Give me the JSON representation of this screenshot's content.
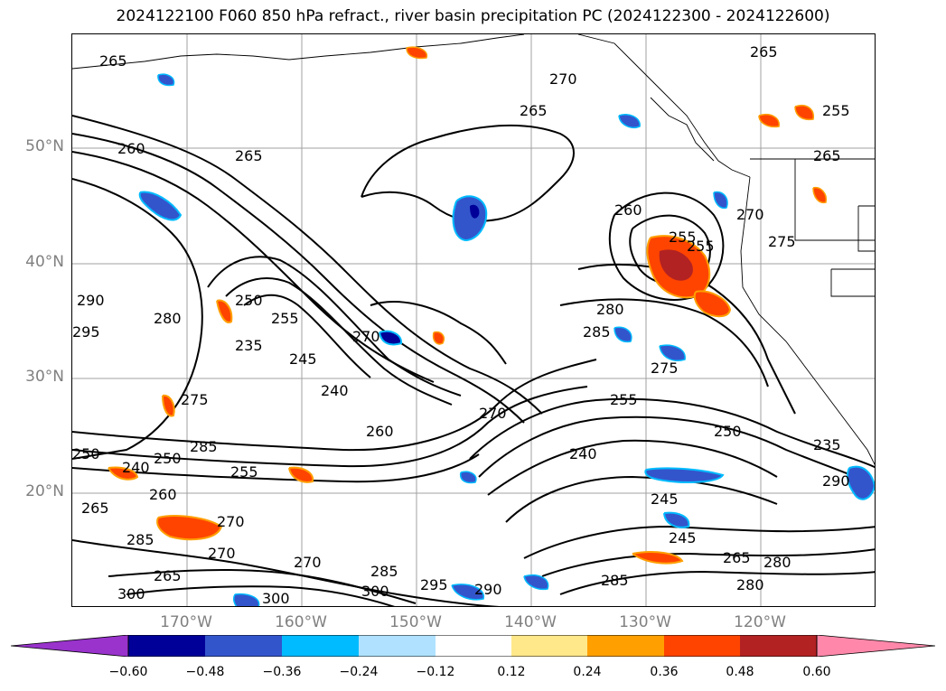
{
  "title": "2024122100 F060 850 hPa refract., river basin precipitation PC (2024122300 - 2024122600)",
  "map": {
    "lat_ticks": [
      "50°N",
      "40°N",
      "30°N",
      "20°N"
    ],
    "lon_ticks": [
      "170°W",
      "160°W",
      "150°W",
      "140°W",
      "130°W",
      "120°W"
    ],
    "contour_labels": [
      "265",
      "270",
      "265",
      "260",
      "265",
      "255",
      "250",
      "270",
      "280",
      "265",
      "255",
      "290",
      "295",
      "280",
      "250",
      "235",
      "255",
      "245",
      "240",
      "270",
      "260",
      "285",
      "280",
      "285",
      "275",
      "255",
      "250",
      "240",
      "245",
      "245",
      "235",
      "250",
      "240",
      "285",
      "255",
      "275",
      "265",
      "260",
      "270",
      "265",
      "270",
      "270",
      "285",
      "295",
      "300",
      "300",
      "290",
      "285",
      "300",
      "265",
      "280",
      "290",
      "260",
      "270",
      "255",
      "275",
      "265"
    ]
  },
  "colorbar": {
    "colors": [
      "#9933cc",
      "#000099",
      "#3355cc",
      "#00bbff",
      "#b0e2ff",
      "#ffffff",
      "#ffe88a",
      "#ff9f00",
      "#ff4400",
      "#b22222",
      "#ff88aa"
    ],
    "tick_labels": [
      "−0.60",
      "−0.48",
      "−0.36",
      "−0.24",
      "−0.12",
      "0.12",
      "0.24",
      "0.36",
      "0.48",
      "0.60"
    ]
  }
}
